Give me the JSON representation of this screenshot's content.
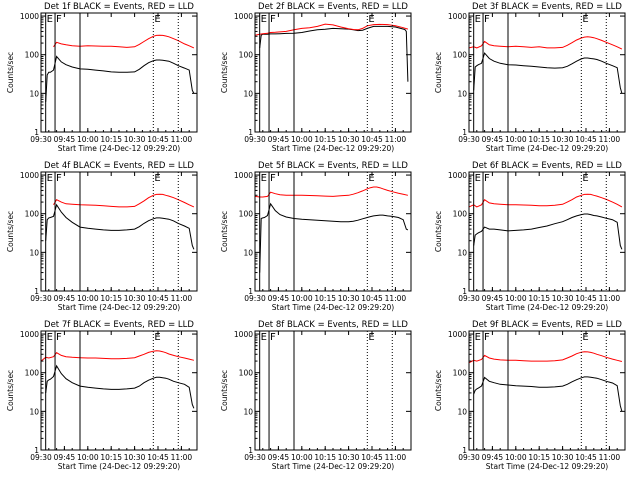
{
  "colors": {
    "background": "#ffffff",
    "events": "#000000",
    "lld": "#ff0000",
    "axes": "#000000"
  },
  "common": {
    "xlabel": "Start Time (24-Dec-12 09:29:20)",
    "ylabel": "Counts/sec",
    "x_ticks": [
      "09:30",
      "09:45",
      "10:00",
      "10:15",
      "10:30",
      "10:45",
      "11:00"
    ],
    "x_tick_minutes": [
      0,
      15,
      30,
      45,
      60,
      75,
      90
    ],
    "x_range_minutes": [
      0,
      100
    ],
    "y_ticks": [
      "1",
      "10",
      "100",
      "1000"
    ],
    "y_tick_values": [
      1,
      10,
      100,
      1000
    ],
    "y_range": [
      1,
      1200
    ],
    "y_scale": "log",
    "marker_letters": [
      "E",
      "F",
      "E"
    ],
    "solid_markers_minutes": [
      3,
      9,
      25
    ],
    "dotted_markers_minutes": [
      72,
      88
    ]
  },
  "chart_data": [
    {
      "type": "line",
      "title": "Det 1f BLACK = Events, RED = LLD",
      "series": [
        {
          "name": "Events",
          "color": "#000000",
          "x": [
            3,
            4,
            5,
            6,
            8,
            10,
            13,
            16,
            20,
            25,
            30,
            35,
            40,
            45,
            50,
            55,
            60,
            63,
            66,
            69,
            72,
            74,
            76,
            78,
            80,
            82,
            85,
            88,
            92,
            95,
            97,
            98
          ],
          "y": [
            6,
            30,
            35,
            35,
            40,
            90,
            65,
            55,
            48,
            43,
            42,
            40,
            38,
            36,
            35,
            35,
            36,
            42,
            52,
            62,
            70,
            73,
            73,
            72,
            70,
            68,
            60,
            52,
            45,
            40,
            12,
            10
          ]
        },
        {
          "name": "LLD",
          "color": "#ff0000",
          "x": [
            8,
            10,
            13,
            16,
            20,
            25,
            30,
            35,
            40,
            45,
            50,
            55,
            60,
            63,
            66,
            69,
            72,
            74,
            76,
            78,
            80,
            82,
            85,
            88,
            92,
            95,
            98
          ],
          "y": [
            160,
            210,
            190,
            180,
            170,
            165,
            170,
            168,
            165,
            165,
            160,
            155,
            160,
            185,
            220,
            260,
            300,
            315,
            320,
            315,
            305,
            290,
            260,
            230,
            190,
            170,
            150
          ]
        }
      ]
    },
    {
      "type": "line",
      "title": "Det 2f BLACK = Events, RED = LLD",
      "series": [
        {
          "name": "Events",
          "color": "#000000",
          "x": [
            3,
            4,
            5,
            8,
            10,
            13,
            16,
            20,
            25,
            30,
            35,
            40,
            45,
            50,
            55,
            60,
            63,
            66,
            69,
            72,
            76,
            80,
            85,
            90,
            96,
            97,
            98
          ],
          "y": [
            150,
            320,
            340,
            340,
            345,
            345,
            350,
            355,
            360,
            375,
            410,
            440,
            455,
            480,
            470,
            460,
            440,
            420,
            430,
            480,
            540,
            540,
            540,
            520,
            450,
            400,
            20
          ]
        },
        {
          "name": "LLD",
          "color": "#ff0000",
          "x": [
            0,
            3,
            5,
            8,
            10,
            13,
            16,
            20,
            25,
            30,
            35,
            40,
            45,
            50,
            55,
            60,
            63,
            66,
            69,
            72,
            76,
            80,
            85,
            90,
            95,
            98
          ],
          "y": [
            320,
            340,
            350,
            360,
            375,
            380,
            390,
            400,
            440,
            480,
            500,
            540,
            620,
            590,
            520,
            470,
            450,
            440,
            480,
            560,
            600,
            610,
            600,
            560,
            500,
            460
          ]
        }
      ]
    },
    {
      "type": "line",
      "title": "Det 3f BLACK = Events, RED = LLD",
      "series": [
        {
          "name": "Events",
          "color": "#000000",
          "x": [
            3,
            4,
            5,
            6,
            8,
            10,
            13,
            16,
            20,
            25,
            30,
            35,
            40,
            45,
            50,
            55,
            60,
            63,
            66,
            69,
            72,
            74,
            76,
            78,
            80,
            82,
            85,
            88,
            92,
            95,
            97,
            98
          ],
          "y": [
            12,
            48,
            52,
            55,
            60,
            110,
            80,
            68,
            60,
            55,
            54,
            52,
            50,
            48,
            46,
            45,
            46,
            50,
            58,
            68,
            78,
            82,
            82,
            80,
            78,
            75,
            68,
            60,
            52,
            46,
            14,
            10
          ]
        },
        {
          "name": "LLD",
          "color": "#ff0000",
          "x": [
            0,
            3,
            5,
            8,
            10,
            13,
            16,
            20,
            25,
            30,
            35,
            40,
            45,
            50,
            55,
            60,
            63,
            66,
            69,
            72,
            74,
            76,
            78,
            80,
            82,
            85,
            88,
            92,
            95,
            98
          ],
          "y": [
            150,
            160,
            150,
            170,
            220,
            180,
            170,
            165,
            160,
            165,
            160,
            155,
            160,
            150,
            150,
            155,
            175,
            205,
            240,
            270,
            285,
            290,
            285,
            275,
            260,
            235,
            210,
            180,
            160,
            140
          ]
        }
      ]
    },
    {
      "type": "line",
      "title": "Det 4f BLACK = Events, RED = LLD",
      "series": [
        {
          "name": "Events",
          "color": "#000000",
          "x": [
            3,
            4,
            5,
            6,
            8,
            10,
            13,
            16,
            20,
            25,
            30,
            35,
            40,
            45,
            50,
            55,
            60,
            63,
            66,
            69,
            72,
            74,
            76,
            78,
            80,
            82,
            85,
            88,
            92,
            95,
            97,
            98
          ],
          "y": [
            20,
            70,
            78,
            80,
            85,
            170,
            110,
            80,
            60,
            45,
            42,
            40,
            38,
            37,
            37,
            38,
            40,
            46,
            56,
            66,
            74,
            78,
            78,
            76,
            74,
            72,
            65,
            56,
            48,
            42,
            15,
            12
          ]
        },
        {
          "name": "LLD",
          "color": "#ff0000",
          "x": [
            8,
            10,
            13,
            16,
            20,
            25,
            30,
            35,
            40,
            45,
            50,
            55,
            60,
            63,
            66,
            69,
            72,
            74,
            76,
            78,
            80,
            82,
            85,
            88,
            92,
            95,
            98
          ],
          "y": [
            170,
            230,
            200,
            180,
            175,
            170,
            168,
            165,
            160,
            155,
            150,
            150,
            155,
            180,
            215,
            260,
            300,
            315,
            320,
            315,
            300,
            285,
            260,
            230,
            195,
            170,
            150
          ]
        }
      ]
    },
    {
      "type": "line",
      "title": "Det 5f BLACK = Events, RED = LLD",
      "series": [
        {
          "name": "Events",
          "color": "#000000",
          "x": [
            3,
            4,
            5,
            6,
            8,
            10,
            13,
            16,
            20,
            25,
            30,
            35,
            40,
            45,
            50,
            55,
            60,
            63,
            66,
            69,
            72,
            74,
            76,
            78,
            80,
            82,
            85,
            88,
            92,
            95,
            97,
            98
          ],
          "y": [
            3,
            75,
            78,
            80,
            90,
            180,
            120,
            95,
            82,
            75,
            72,
            70,
            68,
            66,
            64,
            62,
            62,
            64,
            68,
            74,
            80,
            84,
            88,
            90,
            92,
            92,
            88,
            85,
            80,
            70,
            40,
            38
          ]
        },
        {
          "name": "LLD",
          "color": "#ff0000",
          "x": [
            0,
            3,
            5,
            8,
            10,
            13,
            16,
            20,
            25,
            30,
            35,
            40,
            45,
            50,
            55,
            60,
            63,
            66,
            69,
            72,
            74,
            76,
            78,
            80,
            82,
            85,
            88,
            92,
            95,
            98
          ],
          "y": [
            280,
            270,
            270,
            280,
            360,
            330,
            310,
            300,
            300,
            300,
            295,
            290,
            285,
            280,
            290,
            300,
            320,
            350,
            390,
            440,
            470,
            490,
            490,
            470,
            440,
            400,
            370,
            340,
            320,
            300
          ]
        }
      ]
    },
    {
      "type": "line",
      "title": "Det 6f BLACK = Events, RED = LLD",
      "series": [
        {
          "name": "Events",
          "color": "#000000",
          "x": [
            3,
            4,
            5,
            6,
            8,
            10,
            13,
            16,
            20,
            25,
            30,
            35,
            40,
            45,
            50,
            55,
            60,
            63,
            66,
            69,
            72,
            74,
            76,
            78,
            80,
            82,
            85,
            88,
            92,
            95,
            97,
            98
          ],
          "y": [
            15,
            28,
            30,
            32,
            35,
            45,
            40,
            40,
            38,
            36,
            37,
            38,
            40,
            44,
            48,
            55,
            62,
            70,
            80,
            88,
            95,
            98,
            98,
            95,
            90,
            88,
            82,
            76,
            70,
            60,
            15,
            12
          ]
        },
        {
          "name": "LLD",
          "color": "#ff0000",
          "x": [
            0,
            3,
            5,
            8,
            10,
            13,
            16,
            20,
            25,
            30,
            35,
            40,
            45,
            50,
            55,
            60,
            63,
            66,
            69,
            72,
            74,
            76,
            78,
            80,
            82,
            85,
            88,
            92,
            95,
            98
          ],
          "y": [
            150,
            170,
            150,
            170,
            230,
            190,
            180,
            175,
            170,
            170,
            168,
            165,
            160,
            160,
            165,
            175,
            200,
            230,
            270,
            300,
            315,
            320,
            315,
            300,
            285,
            260,
            235,
            200,
            175,
            150
          ]
        }
      ]
    },
    {
      "type": "line",
      "title": "Det 7f BLACK = Events, RED = LLD",
      "series": [
        {
          "name": "Events",
          "color": "#000000",
          "x": [
            3,
            4,
            5,
            6,
            8,
            10,
            13,
            16,
            20,
            25,
            30,
            35,
            40,
            45,
            50,
            55,
            60,
            63,
            66,
            69,
            72,
            74,
            76,
            78,
            80,
            82,
            85,
            88,
            92,
            95,
            97,
            98
          ],
          "y": [
            30,
            60,
            65,
            68,
            80,
            150,
            95,
            70,
            55,
            45,
            42,
            40,
            38,
            37,
            37,
            38,
            40,
            45,
            55,
            64,
            72,
            76,
            76,
            74,
            72,
            68,
            60,
            55,
            50,
            42,
            15,
            12
          ]
        },
        {
          "name": "LLD",
          "color": "#ff0000",
          "x": [
            0,
            3,
            5,
            8,
            10,
            13,
            16,
            20,
            25,
            30,
            35,
            40,
            45,
            50,
            55,
            60,
            63,
            66,
            69,
            72,
            74,
            76,
            78,
            80,
            82,
            85,
            88,
            92,
            95,
            98
          ],
          "y": [
            200,
            250,
            240,
            260,
            330,
            280,
            260,
            250,
            245,
            240,
            240,
            235,
            230,
            230,
            235,
            245,
            270,
            300,
            335,
            360,
            370,
            365,
            350,
            330,
            305,
            280,
            260,
            240,
            225,
            210
          ]
        }
      ]
    },
    {
      "type": "line",
      "title": "Det 8f BLACK = Events, RED = LLD",
      "series": []
    },
    {
      "type": "line",
      "title": "Det 9f BLACK = Events, RED = LLD",
      "series": [
        {
          "name": "Events",
          "color": "#000000",
          "x": [
            3,
            4,
            5,
            6,
            8,
            10,
            13,
            16,
            20,
            25,
            30,
            35,
            40,
            45,
            50,
            55,
            60,
            63,
            66,
            69,
            72,
            74,
            76,
            78,
            80,
            82,
            85,
            88,
            92,
            95,
            97,
            98
          ],
          "y": [
            28,
            35,
            38,
            40,
            45,
            75,
            60,
            55,
            50,
            48,
            46,
            45,
            44,
            42,
            42,
            43,
            45,
            50,
            58,
            66,
            74,
            78,
            78,
            76,
            74,
            72,
            66,
            60,
            54,
            46,
            14,
            10
          ]
        },
        {
          "name": "LLD",
          "color": "#ff0000",
          "x": [
            0,
            3,
            5,
            8,
            10,
            13,
            16,
            20,
            25,
            30,
            35,
            40,
            45,
            50,
            55,
            60,
            63,
            66,
            69,
            72,
            74,
            76,
            78,
            80,
            82,
            85,
            88,
            92,
            95,
            98
          ],
          "y": [
            180,
            210,
            200,
            220,
            280,
            240,
            225,
            215,
            210,
            210,
            205,
            200,
            200,
            200,
            205,
            215,
            240,
            270,
            310,
            340,
            350,
            345,
            335,
            320,
            300,
            275,
            250,
            225,
            210,
            195
          ]
        }
      ]
    }
  ]
}
